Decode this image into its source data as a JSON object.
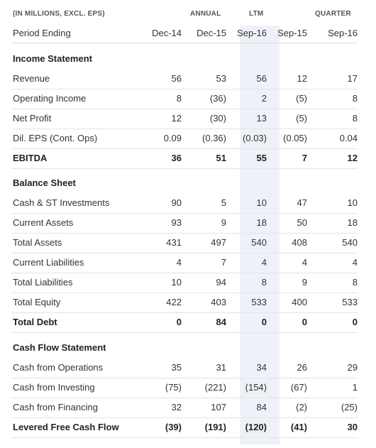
{
  "header": {
    "units": "(IN MILLIONS, EXCL. EPS)",
    "group_annual": "ANNUAL",
    "group_ltm": "LTM",
    "group_quarter": "QUARTER",
    "period_label": "Period Ending",
    "periods": [
      "Dec-14",
      "Dec-15",
      "Sep-16",
      "Sep-15",
      "Sep-16"
    ]
  },
  "sections": [
    {
      "title": "Income Statement",
      "rows": [
        {
          "label": "Revenue",
          "values": [
            "56",
            "53",
            "56",
            "12",
            "17"
          ]
        },
        {
          "label": "Operating Income",
          "values": [
            "8",
            "(36)",
            "2",
            "(5)",
            "8"
          ]
        },
        {
          "label": "Net Profit",
          "values": [
            "12",
            "(30)",
            "13",
            "(5)",
            "8"
          ]
        },
        {
          "label": "Dil. EPS (Cont. Ops)",
          "values": [
            "0.09",
            "(0.36)",
            "(0.03)",
            "(0.05)",
            "0.04"
          ]
        },
        {
          "label": "EBITDA",
          "values": [
            "36",
            "51",
            "55",
            "7",
            "12"
          ]
        }
      ]
    },
    {
      "title": "Balance Sheet",
      "rows": [
        {
          "label": "Cash & ST Investments",
          "values": [
            "90",
            "5",
            "10",
            "47",
            "10"
          ]
        },
        {
          "label": "Current Assets",
          "values": [
            "93",
            "9",
            "18",
            "50",
            "18"
          ]
        },
        {
          "label": "Total Assets",
          "values": [
            "431",
            "497",
            "540",
            "408",
            "540"
          ]
        },
        {
          "label": "Current Liabilities",
          "values": [
            "4",
            "7",
            "4",
            "4",
            "4"
          ]
        },
        {
          "label": "Total Liabilities",
          "values": [
            "10",
            "94",
            "8",
            "9",
            "8"
          ]
        },
        {
          "label": "Total Equity",
          "values": [
            "422",
            "403",
            "533",
            "400",
            "533"
          ]
        },
        {
          "label": "Total Debt",
          "values": [
            "0",
            "84",
            "0",
            "0",
            "0"
          ]
        }
      ]
    },
    {
      "title": "Cash Flow Statement",
      "rows": [
        {
          "label": "Cash from Operations",
          "values": [
            "35",
            "31",
            "34",
            "26",
            "29"
          ]
        },
        {
          "label": "Cash from Investing",
          "values": [
            "(75)",
            "(221)",
            "(154)",
            "(67)",
            "1"
          ]
        },
        {
          "label": "Cash from Financing",
          "values": [
            "32",
            "107",
            "84",
            "(2)",
            "(25)"
          ]
        },
        {
          "label": "Levered Free Cash Flow",
          "values": [
            "(39)",
            "(191)",
            "(120)",
            "(41)",
            "30"
          ]
        }
      ]
    }
  ]
}
